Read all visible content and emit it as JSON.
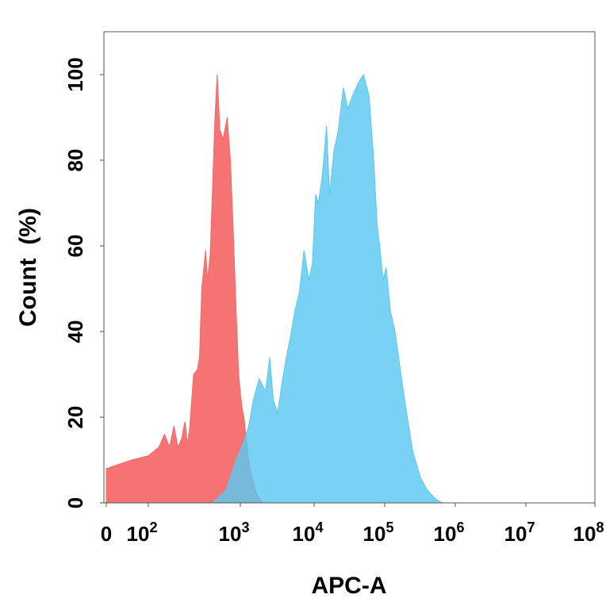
{
  "chart_data": {
    "type": "area",
    "xlabel": "APC-A",
    "ylabel": "Count  (%)",
    "xscale": "biexponential",
    "xlim": [
      0,
      100000000
    ],
    "ylim": [
      0,
      110
    ],
    "grid": false,
    "legend": "none",
    "x_ticks": [
      {
        "base": "0",
        "exp": ""
      },
      {
        "base": "10",
        "exp": "2"
      },
      {
        "base": "10",
        "exp": "3"
      },
      {
        "base": "10",
        "exp": "4"
      },
      {
        "base": "10",
        "exp": "5"
      },
      {
        "base": "10",
        "exp": "6"
      },
      {
        "base": "10",
        "exp": "7"
      },
      {
        "base": "10",
        "exp": "8"
      }
    ],
    "y_ticks": [
      "0",
      "20",
      "40",
      "60",
      "80",
      "100"
    ],
    "series": [
      {
        "color": "#f46b6b",
        "fill_opacity": 0.95,
        "points": [
          [
            0,
            8
          ],
          [
            30,
            9
          ],
          [
            60,
            10
          ],
          [
            100,
            11
          ],
          [
            130,
            13
          ],
          [
            150,
            16
          ],
          [
            170,
            13
          ],
          [
            190,
            18
          ],
          [
            210,
            13
          ],
          [
            230,
            15
          ],
          [
            250,
            19
          ],
          [
            265,
            14
          ],
          [
            280,
            17
          ],
          [
            310,
            30
          ],
          [
            340,
            31
          ],
          [
            360,
            34
          ],
          [
            380,
            50
          ],
          [
            420,
            59
          ],
          [
            440,
            52
          ],
          [
            470,
            58
          ],
          [
            530,
            90
          ],
          [
            560,
            100
          ],
          [
            600,
            87
          ],
          [
            650,
            85
          ],
          [
            720,
            90
          ],
          [
            780,
            80
          ],
          [
            850,
            60
          ],
          [
            900,
            45
          ],
          [
            960,
            30
          ],
          [
            1010,
            25
          ],
          [
            1060,
            22
          ],
          [
            1120,
            20
          ],
          [
            1200,
            15
          ],
          [
            1300,
            10
          ],
          [
            1450,
            6
          ],
          [
            1600,
            3
          ],
          [
            1800,
            1
          ],
          [
            2000,
            0
          ]
        ]
      },
      {
        "color": "#5cc8f0",
        "fill_opacity": 0.82,
        "points": [
          [
            0,
            0
          ],
          [
            500,
            0
          ],
          [
            700,
            3
          ],
          [
            900,
            10
          ],
          [
            1100,
            14
          ],
          [
            1300,
            18
          ],
          [
            1500,
            24
          ],
          [
            1800,
            29
          ],
          [
            2200,
            26
          ],
          [
            2500,
            34
          ],
          [
            2800,
            24
          ],
          [
            3200,
            21
          ],
          [
            3600,
            27
          ],
          [
            4200,
            34
          ],
          [
            4800,
            39
          ],
          [
            5500,
            45
          ],
          [
            6300,
            49
          ],
          [
            7300,
            59
          ],
          [
            8500,
            52
          ],
          [
            9500,
            56
          ],
          [
            10500,
            72
          ],
          [
            11500,
            70
          ],
          [
            13000,
            76
          ],
          [
            15000,
            88
          ],
          [
            16500,
            72
          ],
          [
            19000,
            82
          ],
          [
            22000,
            87
          ],
          [
            26000,
            97
          ],
          [
            30000,
            92
          ],
          [
            35000,
            95
          ],
          [
            42000,
            98
          ],
          [
            50000,
            100
          ],
          [
            60000,
            95
          ],
          [
            70000,
            80
          ],
          [
            78000,
            65
          ],
          [
            85000,
            60
          ],
          [
            95000,
            52
          ],
          [
            105000,
            55
          ],
          [
            120000,
            45
          ],
          [
            140000,
            40
          ],
          [
            170000,
            30
          ],
          [
            200000,
            22
          ],
          [
            250000,
            12
          ],
          [
            320000,
            6
          ],
          [
            400000,
            3
          ],
          [
            520000,
            1
          ],
          [
            650000,
            0
          ]
        ]
      }
    ]
  }
}
